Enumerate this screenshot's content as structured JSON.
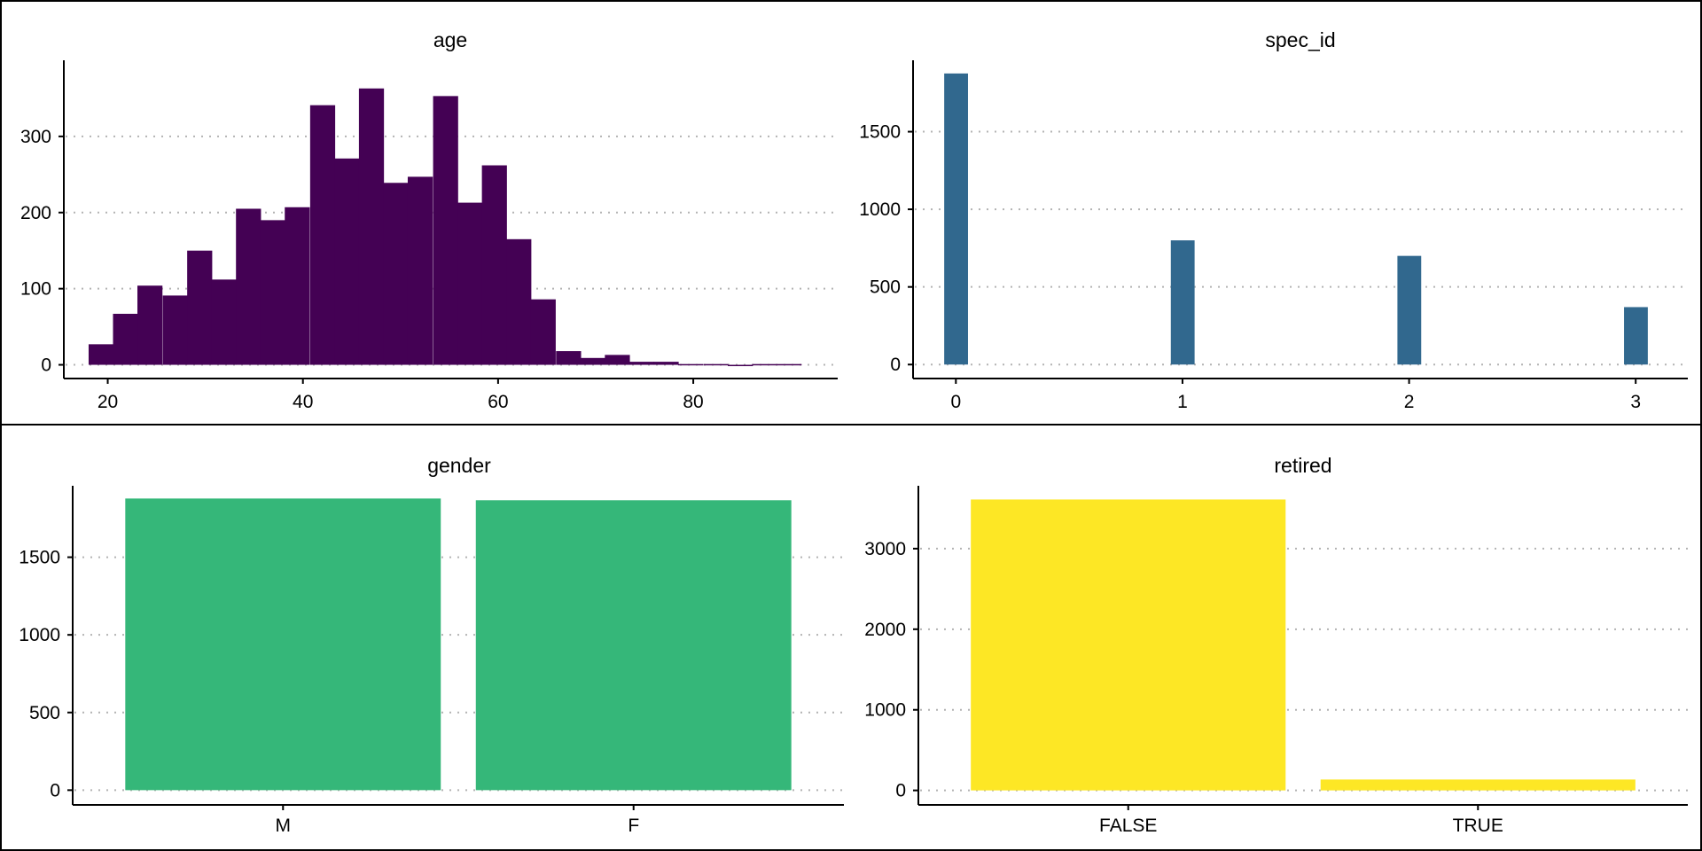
{
  "chart_data": [
    {
      "type": "bar",
      "title": "age",
      "xlabel": "",
      "ylabel": "",
      "bin_width": 2.52,
      "x": [
        19.3,
        21.8,
        24.3,
        26.9,
        29.4,
        31.9,
        34.4,
        36.9,
        39.4,
        42.0,
        44.5,
        47.0,
        49.5,
        52.0,
        54.6,
        57.1,
        59.6,
        62.1,
        64.6,
        67.2,
        69.7,
        72.2,
        74.7,
        77.2,
        79.7,
        82.3,
        84.8,
        87.3,
        89.8
      ],
      "values": [
        27,
        67,
        104,
        91,
        150,
        112,
        205,
        190,
        207,
        341,
        271,
        363,
        239,
        247,
        353,
        213,
        262,
        165,
        86,
        18,
        9,
        13,
        4,
        4,
        1,
        1,
        0,
        1,
        1
      ],
      "xticks": [
        "20",
        "40",
        "60",
        "80"
      ],
      "yticks": [
        "0",
        "100",
        "200",
        "300"
      ],
      "xlim": [
        15.5,
        94.8
      ],
      "ylim": [
        -18,
        400
      ],
      "color": "#440154"
    },
    {
      "type": "bar",
      "title": "spec_id",
      "xlabel": "",
      "ylabel": "",
      "bin_width": 0.103,
      "x": [
        0,
        1,
        2,
        3
      ],
      "values": [
        1875,
        800,
        700,
        370
      ],
      "xticks": [
        "0",
        "1",
        "2",
        "3"
      ],
      "yticks": [
        "0",
        "500",
        "1000",
        "1500"
      ],
      "xlim": [
        -0.189,
        3.23
      ],
      "ylim": [
        -90,
        1960
      ],
      "color": "#31688E"
    },
    {
      "type": "bar",
      "title": "gender",
      "xlabel": "",
      "ylabel": "",
      "categories": [
        "M",
        "F"
      ],
      "values": [
        1878,
        1867
      ],
      "yticks": [
        "0",
        "500",
        "1000",
        "1500"
      ],
      "ylim": [
        -95,
        1960
      ],
      "color": "#35B779"
    },
    {
      "type": "bar",
      "title": "retired",
      "xlabel": "",
      "ylabel": "",
      "categories": [
        "FALSE",
        "TRUE"
      ],
      "values": [
        3610,
        135
      ],
      "yticks": [
        "0",
        "1000",
        "2000",
        "3000"
      ],
      "ylim": [
        -180,
        3780
      ],
      "color": "#FDE725"
    }
  ]
}
